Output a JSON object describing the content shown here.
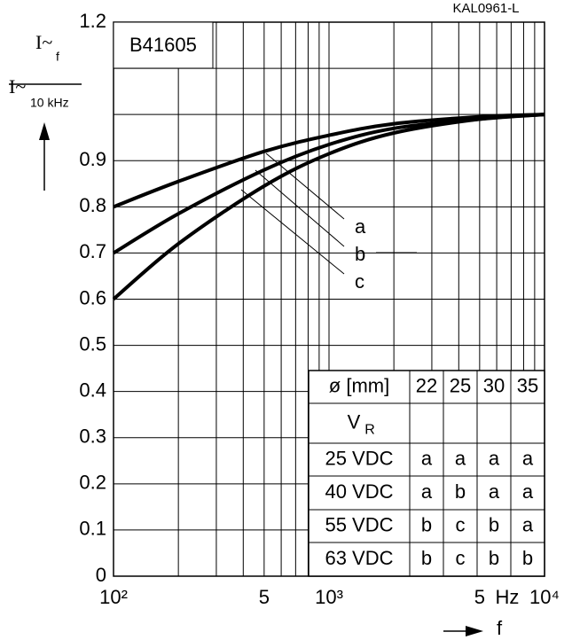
{
  "chart_data": {
    "type": "line",
    "title": "B41605",
    "code": "KAL0961-L",
    "y_label": {
      "num": {
        "text": "I~",
        "sub": "f"
      },
      "den": {
        "text": "I~",
        "sub": "10 kHz"
      }
    },
    "x_label": "f",
    "x_unit": "Hz",
    "x": [
      100,
      200,
      500,
      1000,
      2000,
      5000,
      10000
    ],
    "series": [
      {
        "name": "a",
        "color": "#000000",
        "values": [
          0.8,
          0.855,
          0.92,
          0.955,
          0.98,
          0.995,
          1.0
        ]
      },
      {
        "name": "b",
        "color": "#000000",
        "values": [
          0.7,
          0.785,
          0.88,
          0.935,
          0.97,
          0.99,
          1.0
        ]
      },
      {
        "name": "c",
        "color": "#000000",
        "values": [
          0.6,
          0.72,
          0.845,
          0.915,
          0.96,
          0.99,
          1.0
        ]
      }
    ],
    "xscale": "log",
    "xlim": [
      100,
      10000
    ],
    "ylim": [
      0,
      1.2
    ],
    "xticks": [
      {
        "value": 100,
        "label": "10²"
      },
      {
        "value": 200,
        "label": null
      },
      {
        "value": 300,
        "label": null
      },
      {
        "value": 400,
        "label": null
      },
      {
        "value": 500,
        "label": "5"
      },
      {
        "value": 600,
        "label": null
      },
      {
        "value": 700,
        "label": null
      },
      {
        "value": 800,
        "label": null
      },
      {
        "value": 900,
        "label": null
      },
      {
        "value": 1000,
        "label": "10³"
      },
      {
        "value": 2000,
        "label": null
      },
      {
        "value": 3000,
        "label": null
      },
      {
        "value": 4000,
        "label": null
      },
      {
        "value": 5000,
        "label": "5"
      },
      {
        "value": 6000,
        "label": null
      },
      {
        "value": 7000,
        "label": null
      },
      {
        "value": 8000,
        "label": null
      },
      {
        "value": 9000,
        "label": null
      },
      {
        "value": 10000,
        "label": "10⁴"
      }
    ],
    "yticks": [
      0,
      0.1,
      0.2,
      0.3,
      0.4,
      0.5,
      0.6,
      0.7,
      0.8,
      0.9,
      {
        "value": 1.0,
        "label": null
      },
      {
        "value": 1.1,
        "label": null
      },
      1.2
    ],
    "grid": true
  },
  "table": {
    "header": [
      "ø [mm]",
      "22",
      "25",
      "30",
      "35"
    ],
    "sub_header": {
      "text": "V",
      "sub": "R"
    },
    "rows": [
      [
        "25 VDC",
        "a",
        "a",
        "a",
        "a"
      ],
      [
        "40 VDC",
        "a",
        "b",
        "a",
        "a"
      ],
      [
        "55 VDC",
        "b",
        "c",
        "b",
        "a"
      ],
      [
        "63 VDC",
        "b",
        "c",
        "b",
        "b"
      ]
    ]
  }
}
